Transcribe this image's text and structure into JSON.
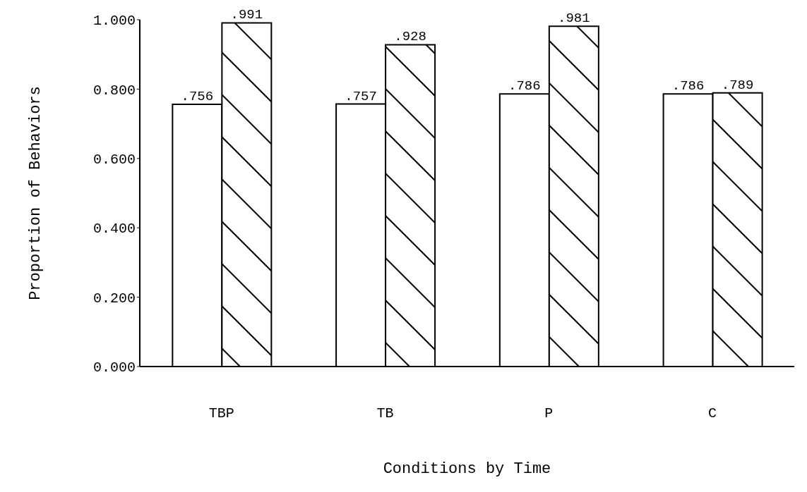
{
  "chart_data": {
    "type": "bar",
    "xlabel": "Conditions by Time",
    "ylabel": "Proportion of Behaviors",
    "categories": [
      "TBP",
      "TB",
      "P",
      "C"
    ],
    "series": [
      {
        "color": "#ffffff",
        "values": [
          0.756,
          0.757,
          0.786,
          0.786
        ],
        "value_labels": [
          ".756",
          ".757",
          ".786",
          ".786"
        ]
      },
      {
        "color": "#000000",
        "values": [
          0.991,
          0.928,
          0.981,
          0.789
        ],
        "value_labels": [
          ".991",
          ".928",
          ".981",
          ".789"
        ]
      }
    ],
    "ylim": [
      0,
      1
    ],
    "yticks": [
      {
        "value": 0,
        "label": "0.000"
      },
      {
        "value": 0.2,
        "label": "0.200"
      },
      {
        "value": 0.4,
        "label": "0.400"
      },
      {
        "value": 0.6,
        "label": "0.600"
      },
      {
        "value": 0.8,
        "label": "0.800"
      },
      {
        "value": 1,
        "label": "1.000"
      }
    ],
    "grid": false,
    "legend": false
  }
}
